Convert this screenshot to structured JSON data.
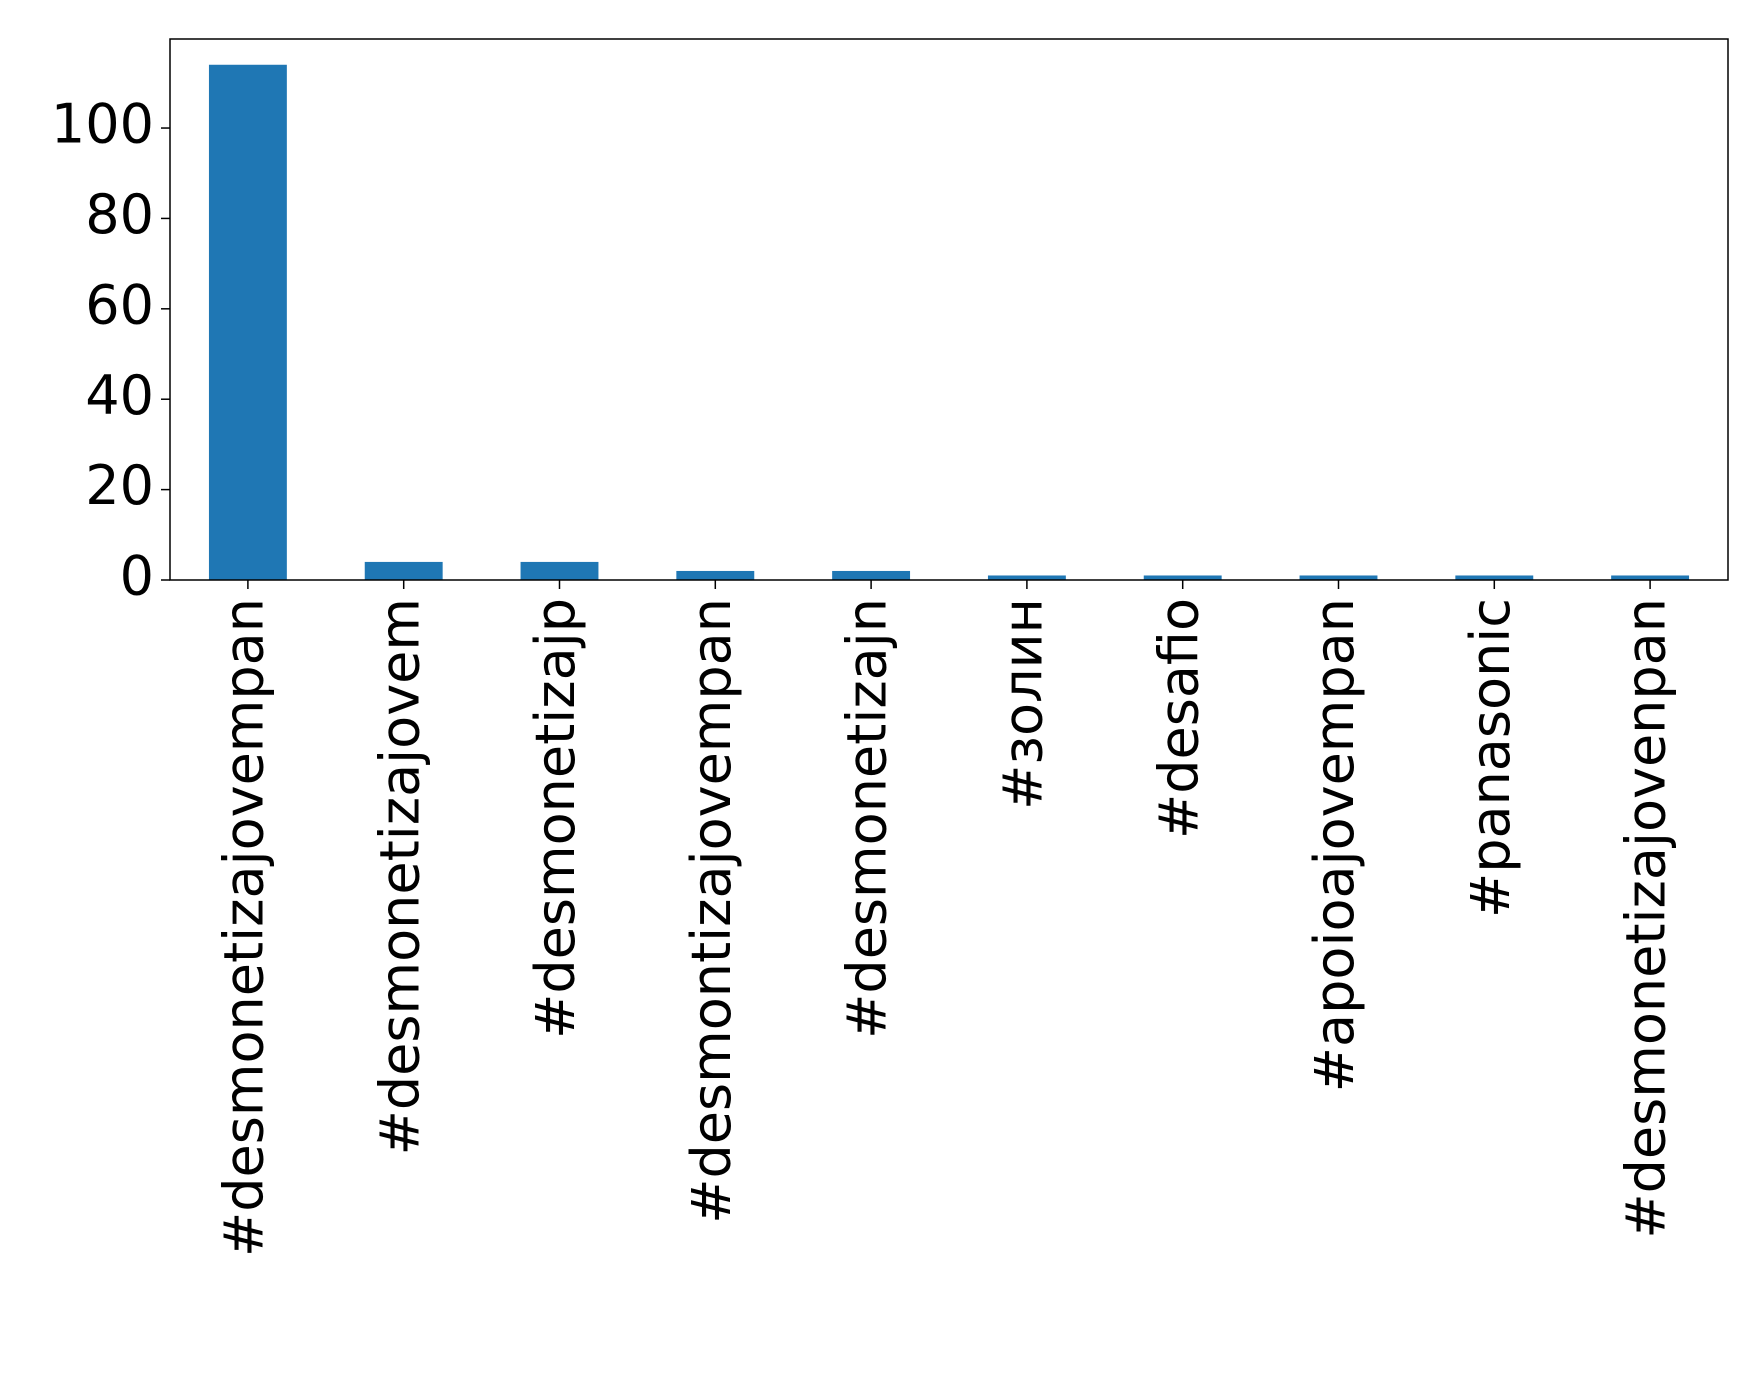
{
  "chart_data": {
    "type": "bar",
    "categories": [
      "#desmonetizajovempan",
      "#desmonetizajovem",
      "#desmonetizajp",
      "#desmontizajovempan",
      "#desmonetizajn",
      "#золин",
      "#desafio",
      "#apoioajovempan",
      "#panasonic",
      "#desmonetizajovenpan"
    ],
    "values": [
      114,
      4,
      4,
      2,
      2,
      1,
      1,
      1,
      1,
      1
    ],
    "color": "#1f77b4",
    "ylim": [
      0,
      119.7
    ],
    "yticks": [
      0,
      20,
      40,
      60,
      80,
      100
    ],
    "grid": false
  }
}
